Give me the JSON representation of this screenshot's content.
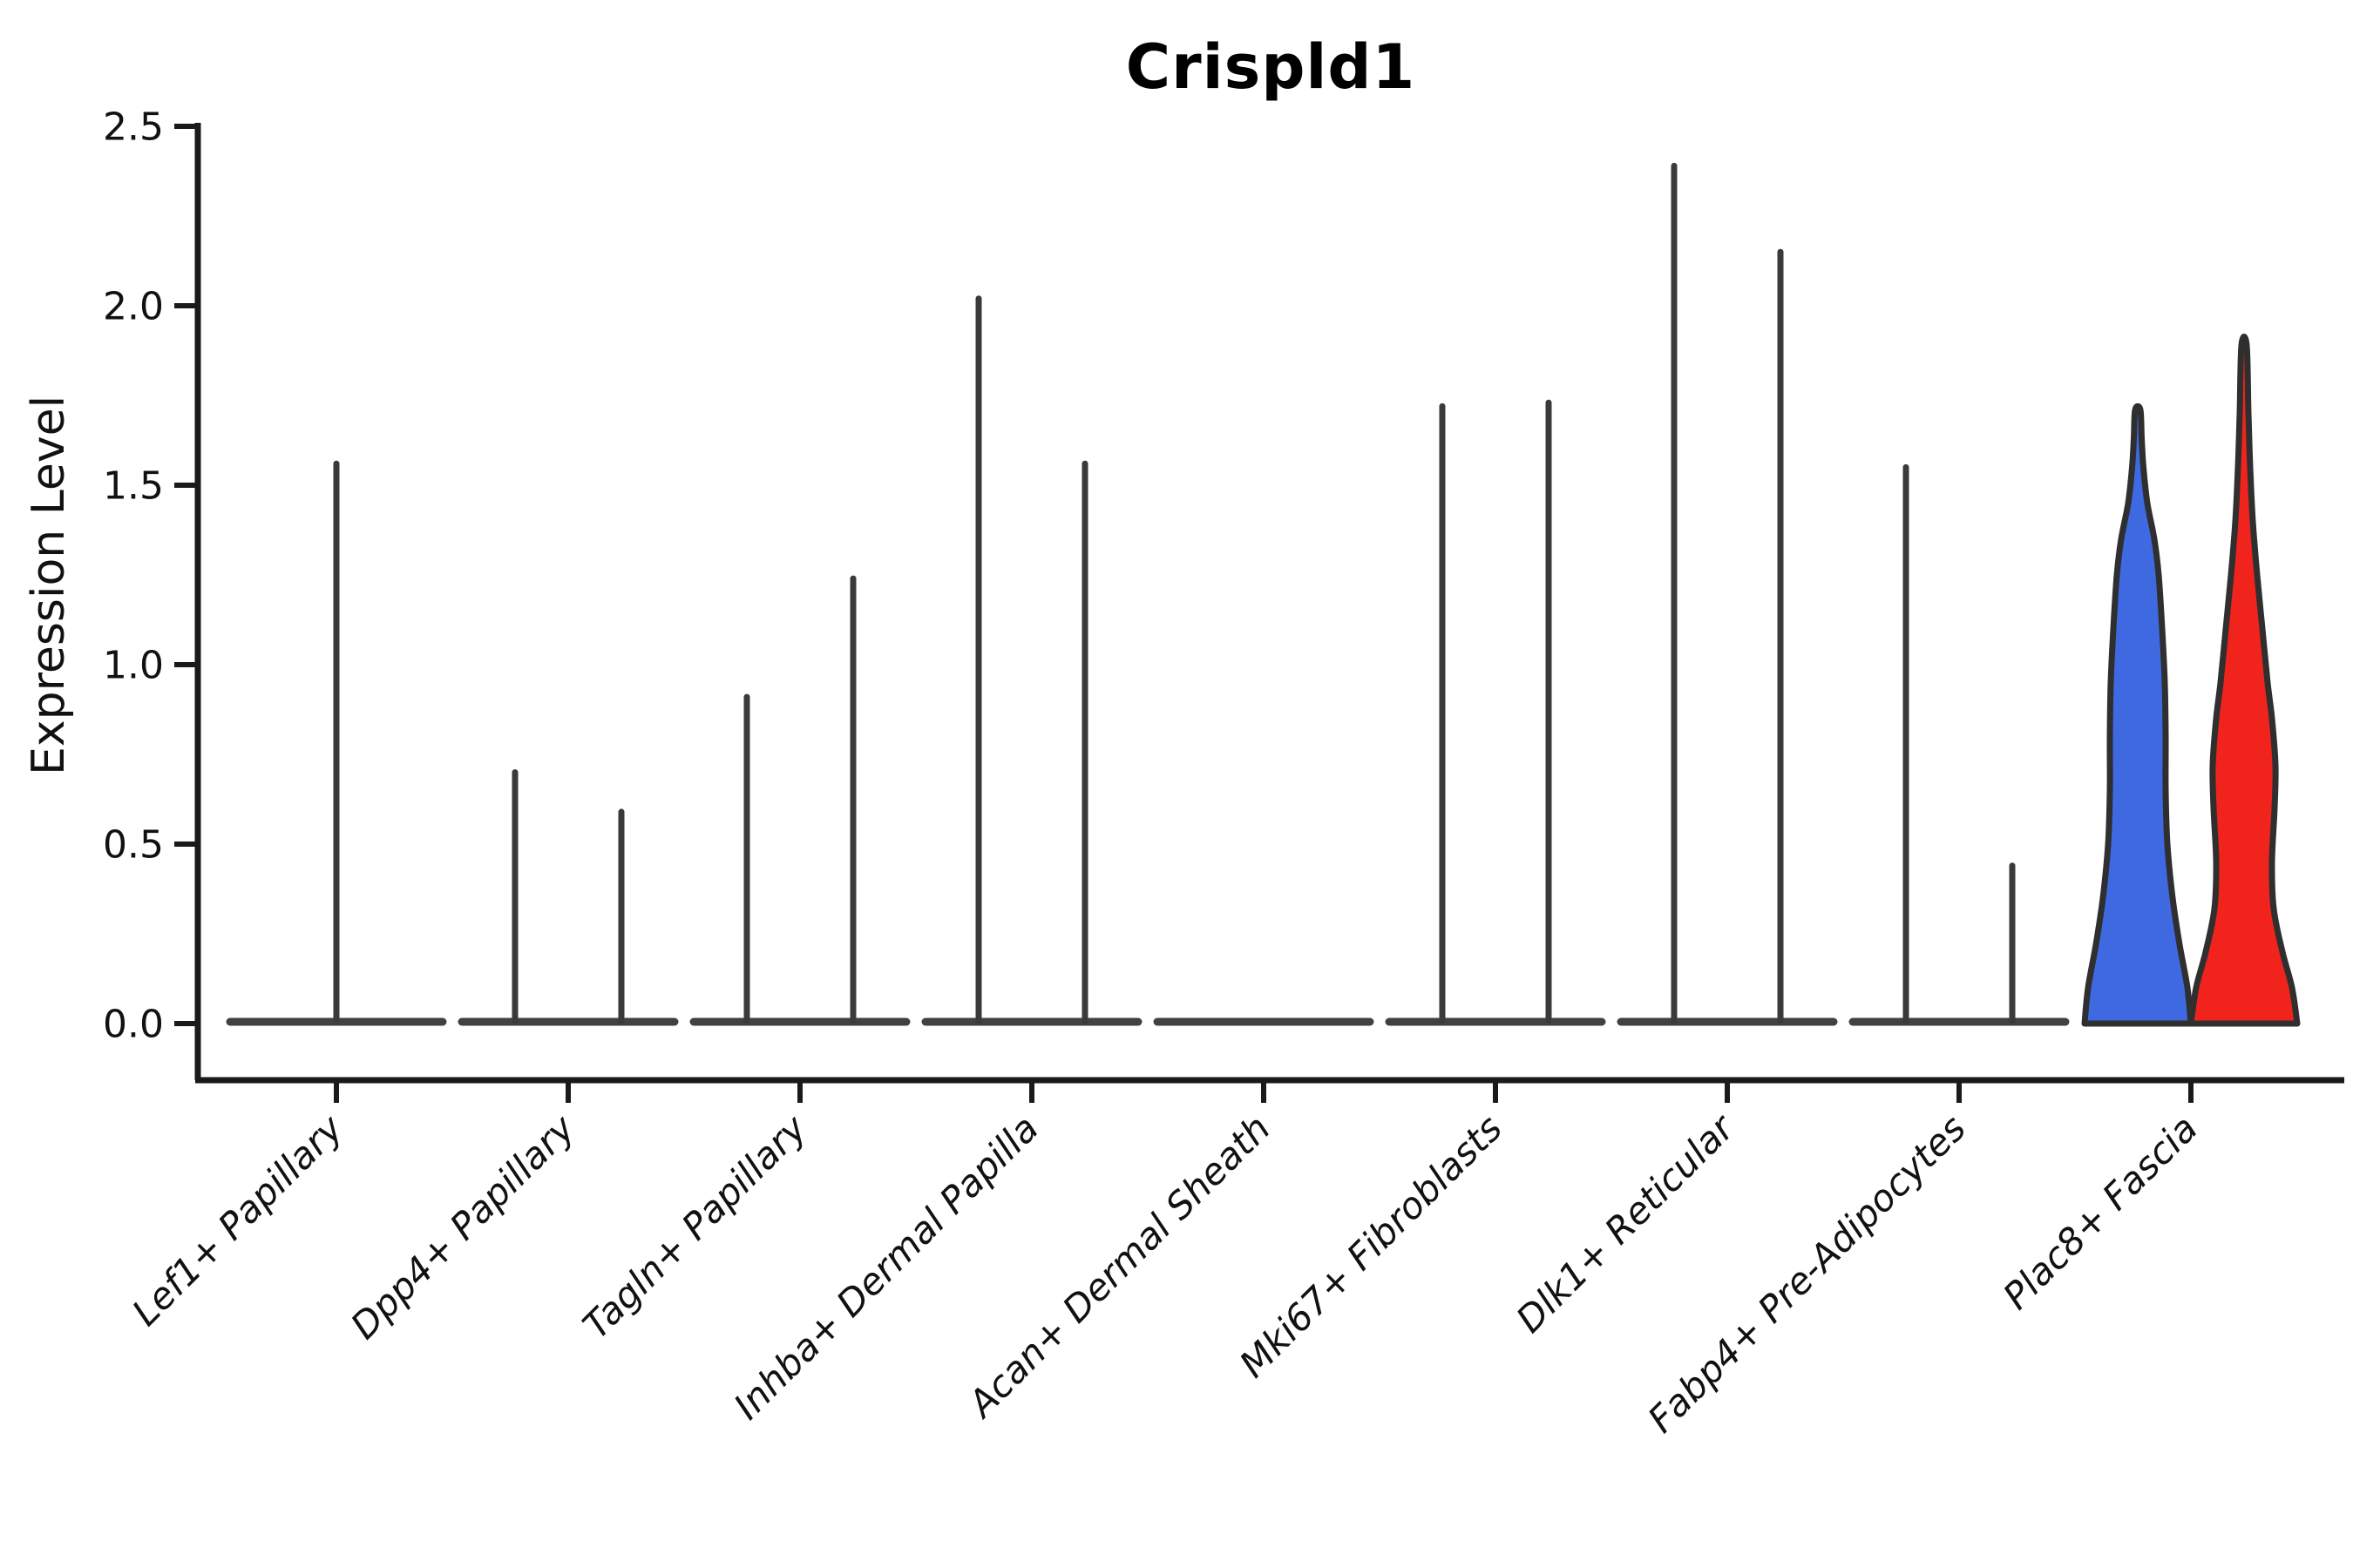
{
  "chart_data": {
    "type": "violin",
    "title": "Crispld1",
    "ylabel": "Expression Level",
    "xlabel": "",
    "ylim": [
      -0.15,
      2.51
    ],
    "yticks": [
      0.0,
      0.5,
      1.0,
      1.5,
      2.0,
      2.5
    ],
    "ytick_labels": [
      "0.0",
      "0.5",
      "1.0",
      "1.5",
      "2.0",
      "2.5"
    ],
    "grid": false,
    "legend": "none",
    "style_notes": "collapsed single-spike violins in dark gray; last category has two filled violins (blue left, red right); only left and bottom spines; x tick labels italic rotated 45",
    "colors": {
      "spike": "#3A3A3A",
      "baseline": "#414141",
      "violin_outline": "#2F2F2F",
      "axis": "#1A1A1A",
      "blue_fill": "#3E69E1",
      "red_fill": "#F0241D"
    },
    "categories": [
      {
        "label": "Lef1+ Papillary",
        "violins": [
          {
            "kind": "spike",
            "position": "center",
            "max": 1.56
          }
        ]
      },
      {
        "label": "Dpp4+ Papillary",
        "violins": [
          {
            "kind": "spike",
            "position": "left",
            "max": 0.7
          },
          {
            "kind": "spike",
            "position": "right",
            "max": 0.59
          }
        ]
      },
      {
        "label": "Tagln+ Papillary",
        "violins": [
          {
            "kind": "spike",
            "position": "left",
            "max": 0.91
          },
          {
            "kind": "spike",
            "position": "right",
            "max": 1.24
          }
        ]
      },
      {
        "label": "Inhba+ Dermal Papilla",
        "violins": [
          {
            "kind": "spike",
            "position": "left",
            "max": 2.02
          },
          {
            "kind": "spike",
            "position": "right",
            "max": 1.56
          }
        ]
      },
      {
        "label": "Acan+ Dermal Sheath",
        "violins": []
      },
      {
        "label": "Mki67+ Fibroblasts",
        "violins": [
          {
            "kind": "spike",
            "position": "left",
            "max": 1.72
          },
          {
            "kind": "spike",
            "position": "right",
            "max": 1.73
          }
        ]
      },
      {
        "label": "Dlk1+ Reticular",
        "violins": [
          {
            "kind": "spike",
            "position": "left",
            "max": 2.39
          },
          {
            "kind": "spike",
            "position": "right",
            "max": 2.15
          }
        ]
      },
      {
        "label": "Fabp4+ Pre-Adipocytes",
        "violins": [
          {
            "kind": "spike",
            "position": "left",
            "max": 1.55
          },
          {
            "kind": "spike",
            "position": "right",
            "max": 0.44
          }
        ]
      },
      {
        "label": "Plac8+ Fascia",
        "violins": [
          {
            "kind": "filled",
            "position": "left",
            "color_key": "blue_fill",
            "max": 1.71,
            "profile": [
              [
                0,
                61
              ],
              [
                0.1,
                57
              ],
              [
                0.22,
                48
              ],
              [
                0.35,
                40
              ],
              [
                0.5,
                34
              ],
              [
                0.65,
                32
              ],
              [
                0.8,
                32
              ],
              [
                0.95,
                31
              ],
              [
                1.1,
                28
              ],
              [
                1.25,
                24
              ],
              [
                1.35,
                19
              ],
              [
                1.45,
                11
              ],
              [
                1.55,
                6.5
              ],
              [
                1.63,
                4.5
              ],
              [
                1.71,
                3
              ]
            ]
          },
          {
            "kind": "filled",
            "position": "right",
            "color_key": "red_fill",
            "max": 1.89,
            "profile": [
              [
                0,
                61
              ],
              [
                0.1,
                55
              ],
              [
                0.2,
                44
              ],
              [
                0.32,
                34
              ],
              [
                0.45,
                32
              ],
              [
                0.6,
                35
              ],
              [
                0.72,
                36
              ],
              [
                0.85,
                32
              ],
              [
                0.95,
                27
              ],
              [
                1.1,
                21
              ],
              [
                1.25,
                15
              ],
              [
                1.4,
                10
              ],
              [
                1.55,
                7
              ],
              [
                1.7,
                5
              ],
              [
                1.89,
                3
              ]
            ]
          }
        ]
      }
    ]
  }
}
